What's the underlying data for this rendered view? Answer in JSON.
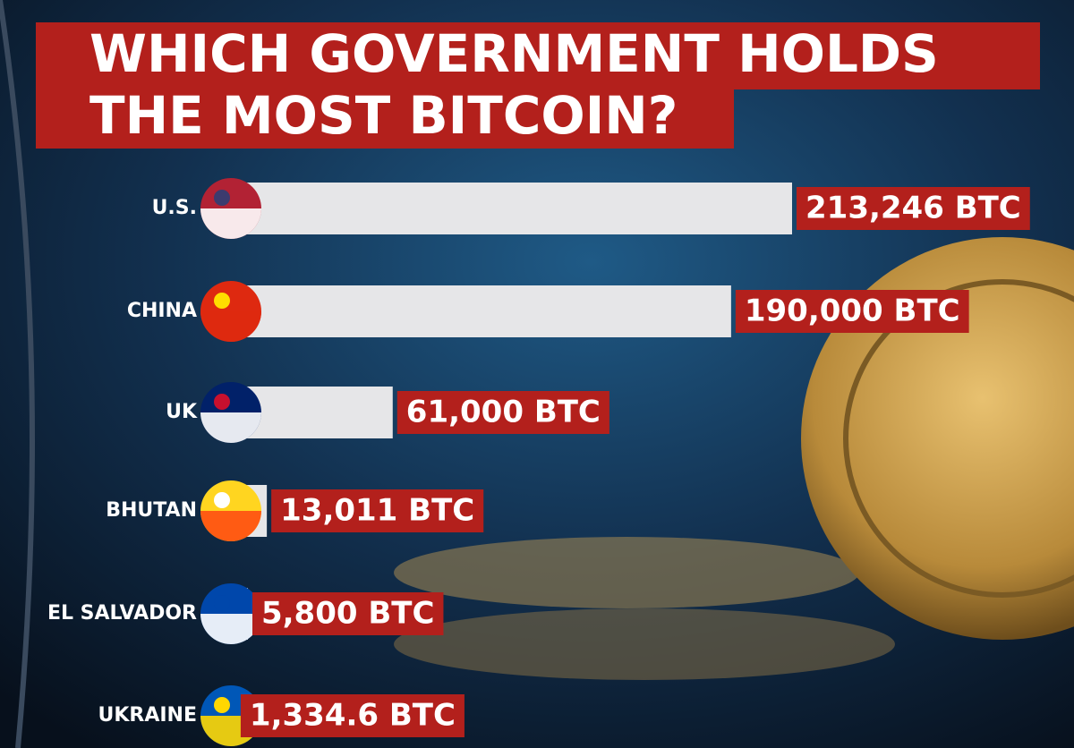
{
  "chart_data": {
    "type": "bar",
    "orientation": "horizontal",
    "title": [
      "WHICH GOVERNMENT HOLDS",
      "THE MOST BITCOIN?"
    ],
    "categories": [
      "U.S.",
      "CHINA",
      "UK",
      "BHUTAN",
      "EL SALVADOR",
      "UKRAINE"
    ],
    "values": [
      213246,
      190000,
      61000,
      13011,
      5800,
      1334.6
    ],
    "value_labels": [
      "213,246 BTC",
      "190,000 BTC",
      "61,000 BTC",
      "13,011 BTC",
      "5,800 BTC",
      "1,334.6 BTC"
    ],
    "color": "#e6e6e8",
    "label_color": "#b3201c"
  }
}
